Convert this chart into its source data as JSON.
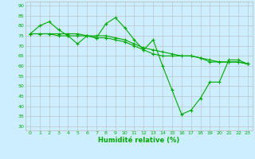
{
  "xlabel": "Humidité relative (%)",
  "bg_color": "#cceeff",
  "grid_color": "#bbbbbb",
  "line_color": "#00aa00",
  "ylim": [
    28,
    92
  ],
  "xlim": [
    -0.5,
    23.5
  ],
  "yticks": [
    30,
    35,
    40,
    45,
    50,
    55,
    60,
    65,
    70,
    75,
    80,
    85,
    90
  ],
  "xticks": [
    0,
    1,
    2,
    3,
    4,
    5,
    6,
    7,
    8,
    9,
    10,
    11,
    12,
    13,
    14,
    15,
    16,
    17,
    18,
    19,
    20,
    21,
    22,
    23
  ],
  "series1": [
    76,
    80,
    82,
    78,
    75,
    71,
    75,
    74,
    81,
    84,
    79,
    73,
    68,
    73,
    60,
    48,
    36,
    38,
    44,
    52,
    52,
    63,
    63,
    61
  ],
  "series2": [
    76,
    76,
    76,
    76,
    76,
    76,
    75,
    75,
    75,
    74,
    73,
    71,
    69,
    68,
    67,
    66,
    65,
    65,
    64,
    63,
    62,
    62,
    62,
    61
  ],
  "series3": [
    76,
    76,
    76,
    75,
    75,
    75,
    75,
    74,
    74,
    73,
    72,
    70,
    68,
    66,
    65,
    65,
    65,
    65,
    64,
    62,
    62,
    62,
    62,
    61
  ]
}
